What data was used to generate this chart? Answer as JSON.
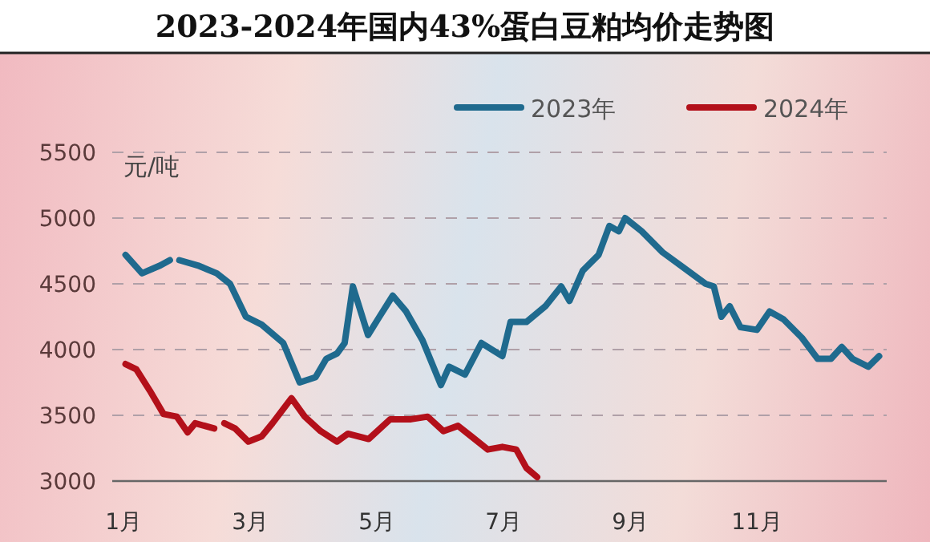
{
  "chart_data": {
    "type": "line",
    "title": "2023-2024年国内43%蛋白豆粕均价走势图",
    "ylabel": "元/吨",
    "xlim": [
      0.82,
      13.05
    ],
    "xticks": [
      {
        "value": 1,
        "label": "1月"
      },
      {
        "value": 3,
        "label": "3月"
      },
      {
        "value": 5,
        "label": "5月"
      },
      {
        "value": 7,
        "label": "7月"
      },
      {
        "value": 9,
        "label": "9月"
      },
      {
        "value": 11,
        "label": "11月"
      }
    ],
    "ylim": [
      3000,
      5500
    ],
    "yticks": [
      3000,
      3500,
      4000,
      4500,
      5000,
      5500
    ],
    "grid": "y",
    "legend": "top right",
    "marker": "none",
    "line_style": "solid",
    "series": [
      {
        "name": "2023年",
        "color": "#1f6a8e",
        "x": [
          1.03,
          1.29,
          1.58,
          1.73,
          1.8,
          1.88,
          2.17,
          2.47,
          2.68,
          2.93,
          3.18,
          3.52,
          3.78,
          4.03,
          4.2,
          4.37,
          4.49,
          4.62,
          4.86,
          5.04,
          5.25,
          5.46,
          5.72,
          6.01,
          6.14,
          6.39,
          6.65,
          6.98,
          7.11,
          7.36,
          7.66,
          7.91,
          8.04,
          8.25,
          8.5,
          8.67,
          8.82,
          8.92,
          9.18,
          9.51,
          9.85,
          10.19,
          10.32,
          10.44,
          10.57,
          10.74,
          11.0,
          11.2,
          11.42,
          11.71,
          11.96,
          12.17,
          12.34,
          12.51,
          12.76,
          12.93
        ],
        "values": [
          4720,
          4580,
          4640,
          4680,
          null,
          4680,
          4640,
          4580,
          4500,
          4250,
          4190,
          4050,
          3750,
          3790,
          3930,
          3970,
          4050,
          4480,
          4110,
          4250,
          4410,
          4290,
          4070,
          3730,
          3870,
          3810,
          4050,
          3950,
          4210,
          4210,
          4330,
          4480,
          4370,
          4600,
          4720,
          4940,
          4900,
          5000,
          4900,
          4740,
          4620,
          4500,
          4480,
          4250,
          4330,
          4170,
          4150,
          4290,
          4230,
          4090,
          3930,
          3930,
          4020,
          3930,
          3870,
          3950
        ]
      },
      {
        "name": "2024年",
        "color": "#b3101a",
        "x": [
          1.03,
          1.2,
          1.41,
          1.63,
          1.84,
          2.01,
          2.13,
          2.43,
          2.51,
          2.59,
          2.76,
          2.97,
          3.18,
          3.35,
          3.65,
          3.86,
          4.11,
          4.37,
          4.54,
          4.87,
          5.21,
          5.54,
          5.8,
          6.05,
          6.28,
          6.49,
          6.75,
          6.98,
          7.2,
          7.36,
          7.53
        ],
        "values": [
          3890,
          3850,
          3690,
          3510,
          3490,
          3370,
          3440,
          3400,
          null,
          3440,
          3400,
          3300,
          3340,
          3440,
          3630,
          3490,
          3380,
          3300,
          3360,
          3320,
          3470,
          3470,
          3490,
          3380,
          3420,
          3340,
          3240,
          3260,
          3240,
          3100,
          3030
        ]
      }
    ]
  }
}
